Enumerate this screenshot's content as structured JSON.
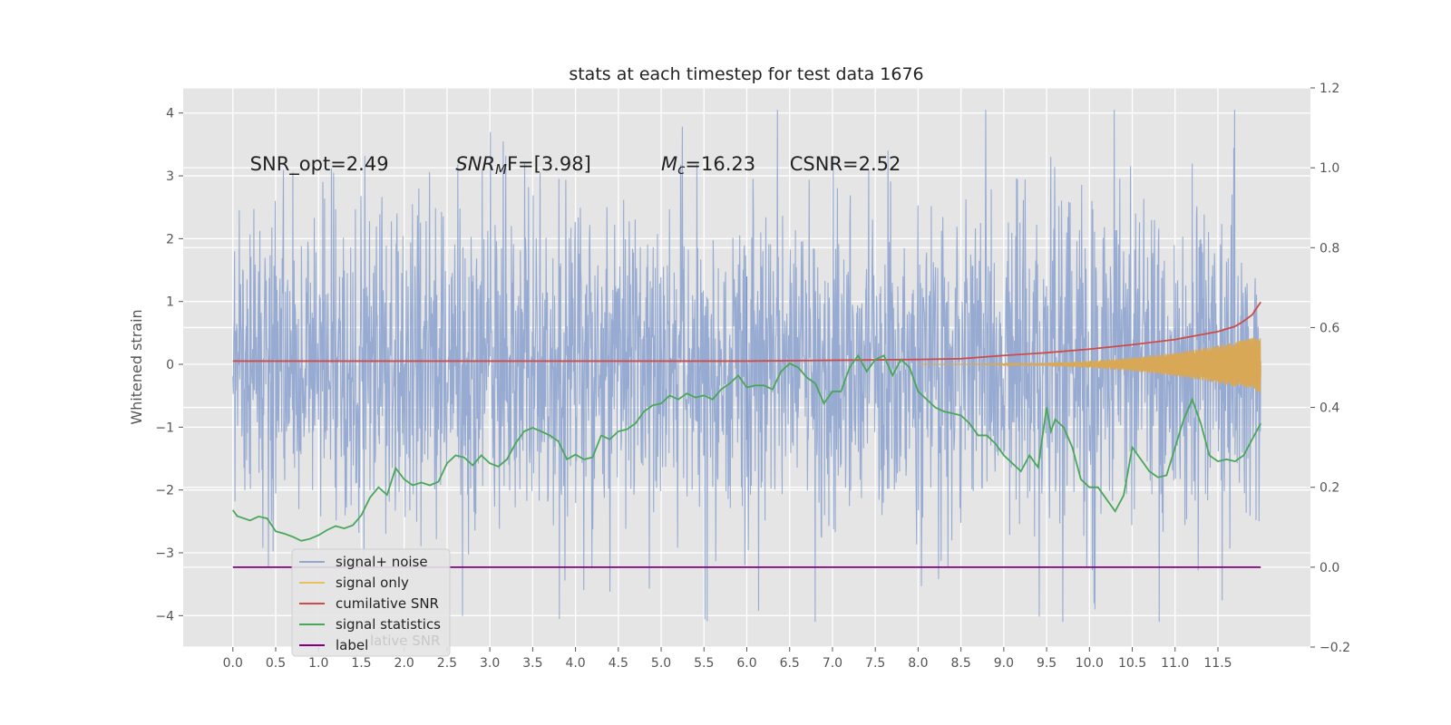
{
  "chart_data": {
    "type": "line",
    "title": "stats at each timestep for test data 1676",
    "ylabel": "Whitened strain",
    "xlim": [
      -0.58,
      12.58
    ],
    "ylim": [
      -4.5,
      4.4
    ],
    "y2lim": [
      -0.2,
      1.2
    ],
    "x_ticks": [
      0.0,
      0.5,
      1.0,
      1.5,
      2.0,
      2.5,
      3.0,
      3.5,
      4.0,
      4.5,
      5.0,
      5.5,
      6.0,
      6.5,
      7.0,
      7.5,
      8.0,
      8.5,
      9.0,
      9.5,
      10.0,
      10.5,
      11.0,
      11.5
    ],
    "y_ticks": [
      -4,
      -3,
      -2,
      -1,
      0,
      1,
      2,
      3,
      4
    ],
    "y2_ticks": [
      -0.2,
      0.0,
      0.2,
      0.4,
      0.6,
      0.8,
      1.0,
      1.2
    ],
    "grid": true,
    "legend_position": "lower-left",
    "annotations": [
      {
        "text": "SNR_opt=2.49",
        "x": 0.2,
        "y": 3.2
      },
      {
        "main": "SNR",
        "sub": "M",
        "tail": "F=[3.98]",
        "x": 2.6,
        "y": 3.2
      },
      {
        "main": "M",
        "sub": "c",
        "tail": "=16.23",
        "x": 5.0,
        "y": 3.2
      },
      {
        "text": "CSNR=2.52",
        "x": 6.5,
        "y": 3.2
      }
    ],
    "series": [
      {
        "name": "signal+ noise",
        "color": "#92a8d1",
        "axis": "left",
        "kind": "noise",
        "x_range": [
          0.0,
          12.0
        ],
        "approx_std": 1.0,
        "y_range": [
          -4.1,
          4.05
        ]
      },
      {
        "name": "signal only",
        "color": "#e8c060",
        "axis": "left",
        "kind": "chirp",
        "x_range": [
          8.0,
          12.0
        ],
        "max_amplitude": 0.45
      },
      {
        "name": "cumilative SNR",
        "color": "#cc4c4c",
        "axis": "right",
        "x": [
          0.0,
          1.0,
          2.0,
          3.0,
          4.0,
          5.0,
          6.0,
          7.0,
          8.0,
          8.5,
          9.0,
          9.5,
          10.0,
          10.5,
          11.0,
          11.5,
          11.7,
          11.8,
          11.9,
          12.0
        ],
        "values": [
          0.516,
          0.516,
          0.516,
          0.516,
          0.516,
          0.516,
          0.516,
          0.518,
          0.52,
          0.522,
          0.53,
          0.537,
          0.546,
          0.557,
          0.57,
          0.59,
          0.603,
          0.616,
          0.632,
          0.664
        ]
      },
      {
        "name": "signal statistics",
        "color": "#4aa65a",
        "axis": "right",
        "x": [
          0.0,
          0.05,
          0.2,
          0.3,
          0.4,
          0.5,
          0.6,
          0.7,
          0.8,
          0.9,
          1.0,
          1.1,
          1.2,
          1.3,
          1.4,
          1.5,
          1.6,
          1.7,
          1.8,
          1.9,
          2.0,
          2.1,
          2.2,
          2.3,
          2.4,
          2.5,
          2.6,
          2.7,
          2.8,
          2.9,
          3.0,
          3.1,
          3.2,
          3.3,
          3.4,
          3.5,
          3.6,
          3.7,
          3.8,
          3.9,
          4.0,
          4.1,
          4.2,
          4.3,
          4.4,
          4.5,
          4.6,
          4.7,
          4.8,
          4.9,
          5.0,
          5.1,
          5.2,
          5.3,
          5.4,
          5.5,
          5.6,
          5.7,
          5.8,
          5.9,
          6.0,
          6.1,
          6.2,
          6.3,
          6.4,
          6.5,
          6.6,
          6.7,
          6.8,
          6.9,
          7.0,
          7.1,
          7.2,
          7.3,
          7.4,
          7.5,
          7.6,
          7.7,
          7.8,
          7.9,
          8.0,
          8.1,
          8.2,
          8.3,
          8.4,
          8.5,
          8.6,
          8.7,
          8.8,
          8.9,
          9.0,
          9.1,
          9.2,
          9.3,
          9.4,
          9.5,
          9.55,
          9.6,
          9.7,
          9.8,
          9.9,
          10.0,
          10.1,
          10.2,
          10.3,
          10.4,
          10.5,
          10.6,
          10.7,
          10.8,
          10.9,
          11.0,
          11.1,
          11.2,
          11.3,
          11.4,
          11.5,
          11.6,
          11.7,
          11.8,
          11.9,
          12.0
        ],
        "values": [
          0.143,
          0.128,
          0.117,
          0.127,
          0.122,
          0.09,
          0.084,
          0.076,
          0.066,
          0.071,
          0.08,
          0.093,
          0.103,
          0.097,
          0.105,
          0.13,
          0.174,
          0.2,
          0.181,
          0.248,
          0.22,
          0.205,
          0.212,
          0.205,
          0.214,
          0.26,
          0.28,
          0.275,
          0.255,
          0.28,
          0.26,
          0.252,
          0.27,
          0.31,
          0.34,
          0.349,
          0.34,
          0.33,
          0.315,
          0.27,
          0.282,
          0.27,
          0.275,
          0.33,
          0.32,
          0.34,
          0.345,
          0.36,
          0.39,
          0.405,
          0.41,
          0.43,
          0.42,
          0.435,
          0.425,
          0.43,
          0.42,
          0.445,
          0.46,
          0.48,
          0.45,
          0.455,
          0.455,
          0.445,
          0.49,
          0.51,
          0.5,
          0.475,
          0.46,
          0.41,
          0.44,
          0.44,
          0.5,
          0.53,
          0.49,
          0.52,
          0.53,
          0.48,
          0.52,
          0.5,
          0.44,
          0.42,
          0.4,
          0.39,
          0.385,
          0.38,
          0.36,
          0.33,
          0.33,
          0.31,
          0.28,
          0.26,
          0.24,
          0.28,
          0.25,
          0.4,
          0.34,
          0.37,
          0.35,
          0.3,
          0.22,
          0.2,
          0.2,
          0.17,
          0.14,
          0.18,
          0.3,
          0.27,
          0.24,
          0.225,
          0.23,
          0.3,
          0.37,
          0.42,
          0.36,
          0.28,
          0.265,
          0.27,
          0.265,
          0.28,
          0.32,
          0.36
        ]
      },
      {
        "name": "label",
        "color": "#800080",
        "axis": "right",
        "x": [
          0.0,
          12.0
        ],
        "values": [
          0.0,
          0.0
        ]
      }
    ],
    "legend_background_ghost_text": "lative SNR"
  }
}
